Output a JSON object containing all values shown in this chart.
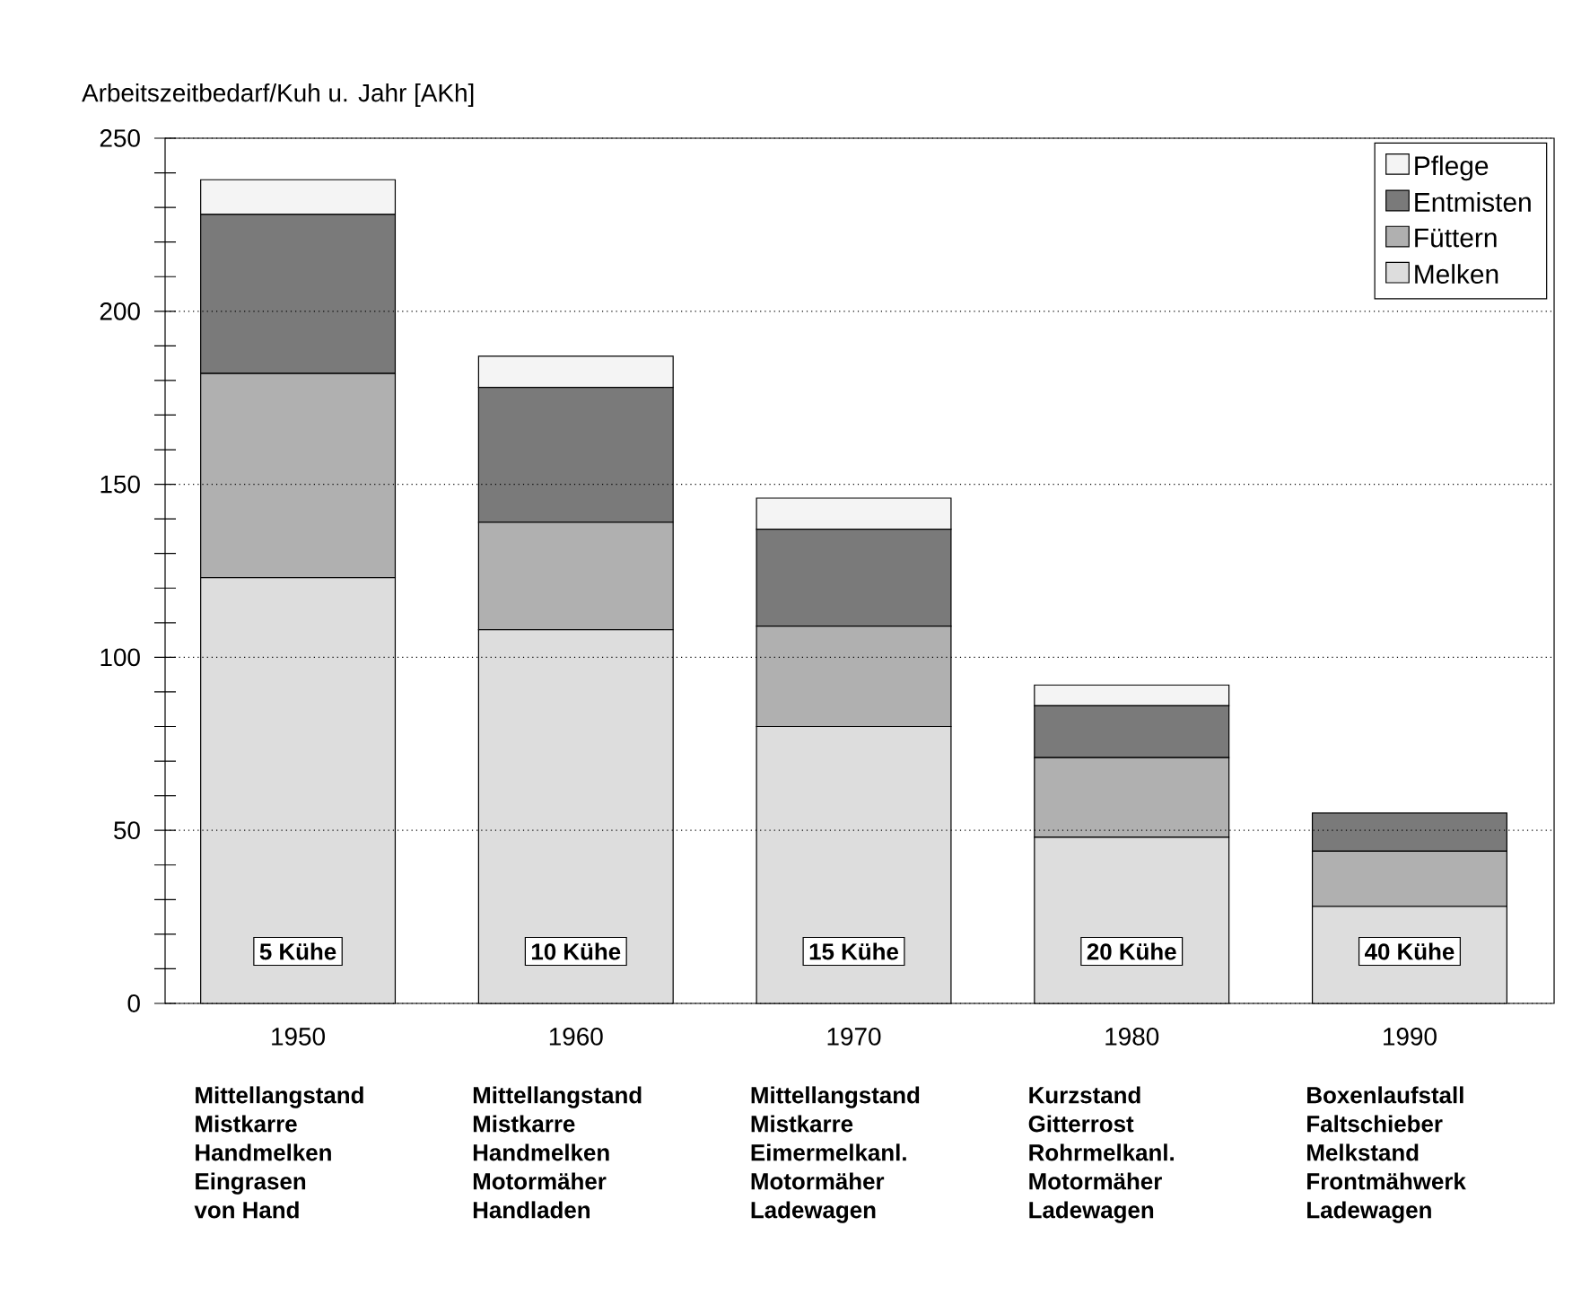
{
  "chart_data": {
    "type": "bar",
    "stacked": true,
    "ylabel": "Arbeitszeitbedarf/Kuh u. Jahr [AKh]",
    "categories": [
      "1950",
      "1960",
      "1970",
      "1980",
      "1990"
    ],
    "series": [
      {
        "name": "Melken",
        "color": "#dddddd",
        "values": [
          123,
          108,
          80,
          48,
          28
        ]
      },
      {
        "name": "Füttern",
        "color": "#b0b0b0",
        "values": [
          59,
          31,
          29,
          23,
          16
        ]
      },
      {
        "name": "Entmisten",
        "color": "#7a7a7a",
        "values": [
          46,
          39,
          28,
          15,
          11
        ]
      },
      {
        "name": "Pflege",
        "color": "#f4f4f4",
        "values": [
          10,
          9,
          9,
          6,
          null
        ]
      }
    ],
    "ylim": [
      0,
      250
    ],
    "yticks": [
      0,
      {
        "value": 10,
        "label": null
      },
      {
        "value": 20,
        "label": null
      },
      {
        "value": 30,
        "label": null
      },
      {
        "value": 40,
        "label": null
      },
      50,
      {
        "value": 60,
        "label": null
      },
      {
        "value": 70,
        "label": null
      },
      {
        "value": 80,
        "label": null
      },
      {
        "value": 90,
        "label": null
      },
      100,
      {
        "value": 110,
        "label": null
      },
      {
        "value": 120,
        "label": null
      },
      {
        "value": 130,
        "label": null
      },
      {
        "value": 140,
        "label": null
      },
      150,
      {
        "value": 160,
        "label": null
      },
      {
        "value": 170,
        "label": null
      },
      {
        "value": 180,
        "label": null
      },
      {
        "value": 190,
        "label": null
      },
      200,
      {
        "value": 210,
        "label": null
      },
      {
        "value": 220,
        "label": null
      },
      {
        "value": 230,
        "label": null
      },
      {
        "value": 240,
        "label": null
      },
      250
    ],
    "grid": "y",
    "legend": "top right",
    "annotations": [
      "5 Kühe",
      "10 Kühe",
      "15 Kühe",
      "20 Kühe",
      "40 Kühe",
      "Mittellangstand",
      "Mistkarre",
      "Handmelken",
      "Eingrasen",
      "von Hand",
      "Mittellangstand",
      "Mistkarre",
      "Handmelken",
      "Motormäher",
      "Handladen",
      "Mittellangstand",
      "Mistkarre",
      "Eimermelkanl.",
      "Motormäher",
      "Ladewagen",
      "Kurzstand",
      "Gitterrost",
      "Rohrmelkanl.",
      "Motormäher",
      "Ladewagen",
      "Boxenlaufstall",
      "Faltschieber",
      "Melkstand",
      "Frontmähwerk",
      "Ladewagen"
    ]
  }
}
